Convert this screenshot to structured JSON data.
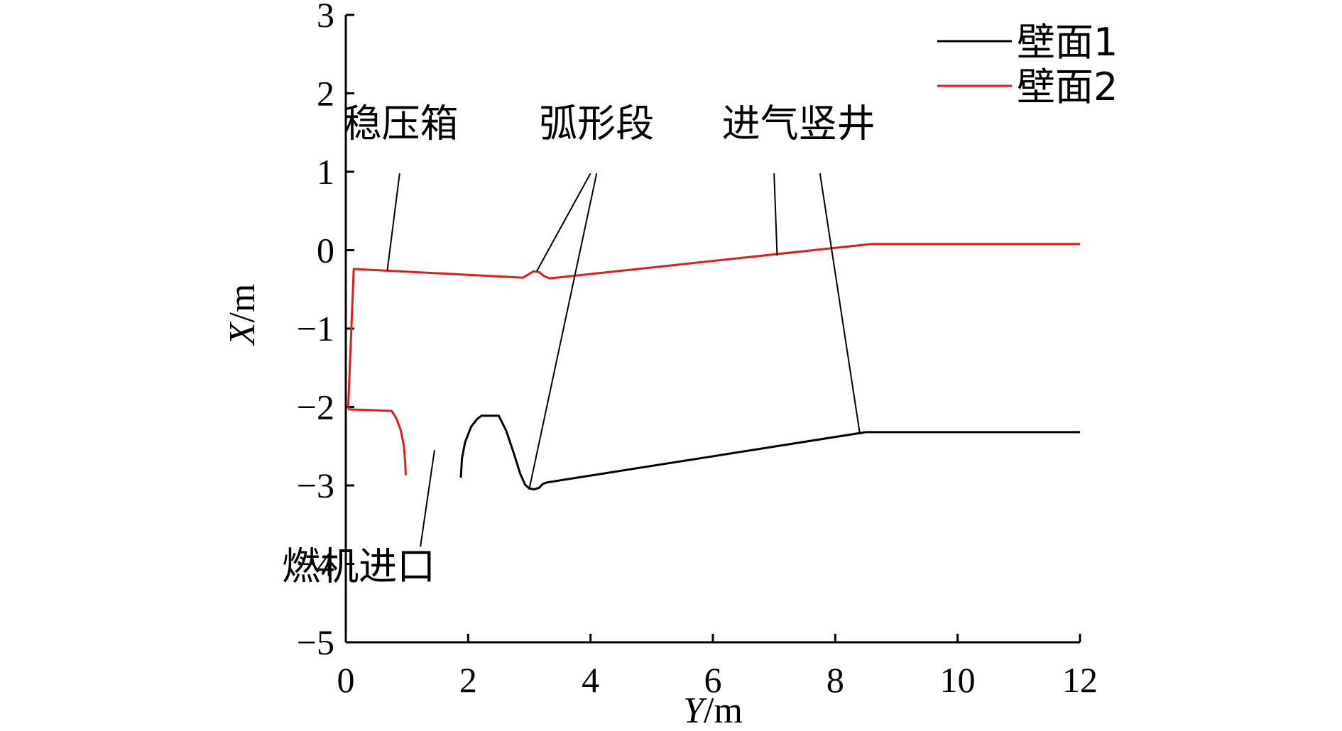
{
  "chart_data": {
    "type": "line",
    "xlabel": {
      "var": "Y",
      "unit": "/m"
    },
    "ylabel": {
      "var": "X",
      "unit": "/m"
    },
    "xlim": [
      0,
      12
    ],
    "ylim": [
      -5,
      3
    ],
    "x_ticks": [
      "0",
      "2",
      "4",
      "6",
      "8",
      "10",
      "12"
    ],
    "y_ticks": [
      "3",
      "2",
      "1",
      "0",
      "−1",
      "−2",
      "−3",
      "−4",
      "−5"
    ],
    "grid": false,
    "legend_position": "top-right",
    "series": [
      {
        "name": "壁面1",
        "color": "#000000",
        "points": [
          [
            1.88,
            -2.9
          ],
          [
            1.9,
            -2.65
          ],
          [
            1.95,
            -2.45
          ],
          [
            2.05,
            -2.25
          ],
          [
            2.15,
            -2.15
          ],
          [
            2.22,
            -2.11
          ],
          [
            2.5,
            -2.11
          ],
          [
            2.62,
            -2.3
          ],
          [
            2.75,
            -2.6
          ],
          [
            2.85,
            -2.85
          ],
          [
            2.93,
            -2.99
          ],
          [
            3.0,
            -3.04
          ],
          [
            3.08,
            -3.05
          ],
          [
            3.16,
            -3.03
          ],
          [
            3.22,
            -2.98
          ],
          [
            3.3,
            -2.96
          ],
          [
            8.5,
            -2.32
          ],
          [
            12.0,
            -2.32
          ]
        ]
      },
      {
        "name": "壁面2",
        "color": "#e31a1c",
        "points": [
          [
            0.98,
            -2.87
          ],
          [
            0.97,
            -2.7
          ],
          [
            0.95,
            -2.5
          ],
          [
            0.9,
            -2.3
          ],
          [
            0.83,
            -2.15
          ],
          [
            0.75,
            -2.05
          ],
          [
            0.05,
            -2.03
          ],
          [
            0.04,
            -2.0
          ],
          [
            0.13,
            -0.24
          ],
          [
            2.9,
            -0.35
          ],
          [
            2.98,
            -0.31
          ],
          [
            3.07,
            -0.27
          ],
          [
            3.16,
            -0.28
          ],
          [
            3.24,
            -0.33
          ],
          [
            3.33,
            -0.36
          ],
          [
            8.6,
            0.08
          ],
          [
            12.0,
            0.08
          ]
        ]
      }
    ],
    "annotations": [
      {
        "id": "pressure-box",
        "text": "稳压箱",
        "anchor": [
          0.9,
          1.45
        ],
        "leaders": [
          {
            "from": [
              0.88,
              0.98
            ],
            "to": [
              0.68,
              -0.25
            ]
          }
        ]
      },
      {
        "id": "arc-section",
        "text": "弧形段",
        "anchor": [
          4.1,
          1.45
        ],
        "leaders": [
          {
            "from": [
              4.0,
              0.98
            ],
            "to": [
              3.12,
              -0.27
            ]
          },
          {
            "from": [
              4.1,
              0.98
            ],
            "to": [
              3.0,
              -3.04
            ]
          }
        ]
      },
      {
        "id": "intake-shaft",
        "text": "进气竖井",
        "anchor": [
          7.4,
          1.45
        ],
        "leaders": [
          {
            "from": [
              7.0,
              0.98
            ],
            "to": [
              7.05,
              -0.07
            ]
          },
          {
            "from": [
              7.75,
              0.98
            ],
            "to": [
              8.4,
              -2.33
            ]
          }
        ]
      },
      {
        "id": "engine-inlet",
        "text": "燃机进口",
        "anchor": [
          0.21,
          -4.2
        ],
        "leaders": [
          {
            "from": [
              1.22,
              -3.78
            ],
            "to": [
              1.45,
              -2.55
            ]
          }
        ]
      }
    ]
  }
}
